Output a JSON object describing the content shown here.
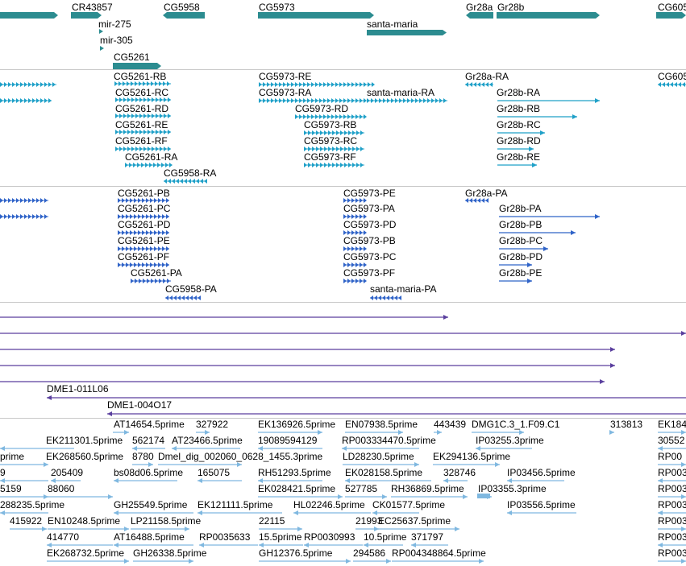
{
  "colors": {
    "gene": "#2c8c90",
    "transcript": "#1fa0c8",
    "protein": "#2f63c8",
    "clone": "#5a3f9e",
    "est": "#7fb8e0",
    "separator": "#c8c8c8"
  },
  "tracks": {
    "gene": {
      "name": "gene-track",
      "labels": [
        "CR43857",
        "CG5958",
        "CG5973",
        "Gr28a",
        "Gr28b",
        "CG605",
        "mir-275",
        "mir-305",
        "santa-maria",
        "CG5261"
      ]
    },
    "transcripts": {
      "name": "transcript-track",
      "labels": [
        "CG5261-RB",
        "CG5261-RC",
        "CG5261-RD",
        "CG5261-RE",
        "CG5261-RF",
        "CG5261-RA",
        "CG5958-RA",
        "CG5973-RE",
        "CG5973-RA",
        "CG5973-RD",
        "CG5973-RB",
        "CG5973-RC",
        "CG5973-RF",
        "santa-maria-RA",
        "Gr28a-RA",
        "Gr28b-RA",
        "Gr28b-RB",
        "Gr28b-RC",
        "Gr28b-RD",
        "Gr28b-RE",
        "CG605"
      ]
    },
    "proteins": {
      "name": "protein-track",
      "labels": [
        "CG5261-PB",
        "CG5261-PC",
        "CG5261-PD",
        "CG5261-PE",
        "CG5261-PF",
        "CG5261-PA",
        "CG5958-PA",
        "CG5973-PE",
        "CG5973-PA",
        "CG5973-PD",
        "CG5973-PB",
        "CG5973-PC",
        "CG5973-PF",
        "santa-maria-PA",
        "Gr28a-PA",
        "Gr28b-PA",
        "Gr28b-PB",
        "Gr28b-PC",
        "Gr28b-PD",
        "Gr28b-PE"
      ]
    },
    "clones": {
      "name": "clone-track",
      "labels": [
        "DME1-011L06",
        "DME1-004O17"
      ]
    },
    "ests": {
      "name": "est-track",
      "labels": [
        "AT14654.5prime",
        "327922",
        "EK136926.5prime",
        "EN07938.5prime",
        "443439",
        "DMG1C.3_1.F09.C1",
        "313813",
        "EK184",
        "EK211301.5prime",
        "562174",
        "AT23466.5prime",
        "19089594129",
        "RP003334470.5prime",
        "IP03255.3prime",
        "30552",
        "prime",
        "EK268560.5prime",
        "8780",
        "Dmel_dig_002060_0628_1455.3prime",
        "LD28230.5prime",
        "EK294136.5prime",
        "RP00",
        "9",
        "205409",
        "bs08d06.5prime",
        "165075",
        "RH51293.5prime",
        "EK028158.5prime",
        "328746",
        "IP03456.5prime",
        "RP003",
        "5159",
        "88060",
        "EK028421.5prime",
        "527785",
        "RH36869.5prime",
        "IP03355.3prime",
        "RP003",
        "288235.5prime",
        "GH25549.5prime",
        "EK121111.5prime",
        "HL02246.5prime",
        "CK01577.5prime",
        "IP03556.5prime",
        "RP003",
        "415922",
        "EN10248.5prime",
        "LP21158.5prime",
        "22115",
        "21993",
        "EC25637.5prime",
        "RP003",
        "414770",
        "AT16488.5prime",
        "RP0035633",
        "15.5prime",
        "RP0030993",
        "10.5prime",
        "371797",
        "RP003",
        "EK268732.5prime",
        "GH26338.5prime",
        "GH12376.5prime",
        "294586",
        "RP004348864.5prime",
        "RP003"
      ]
    }
  }
}
